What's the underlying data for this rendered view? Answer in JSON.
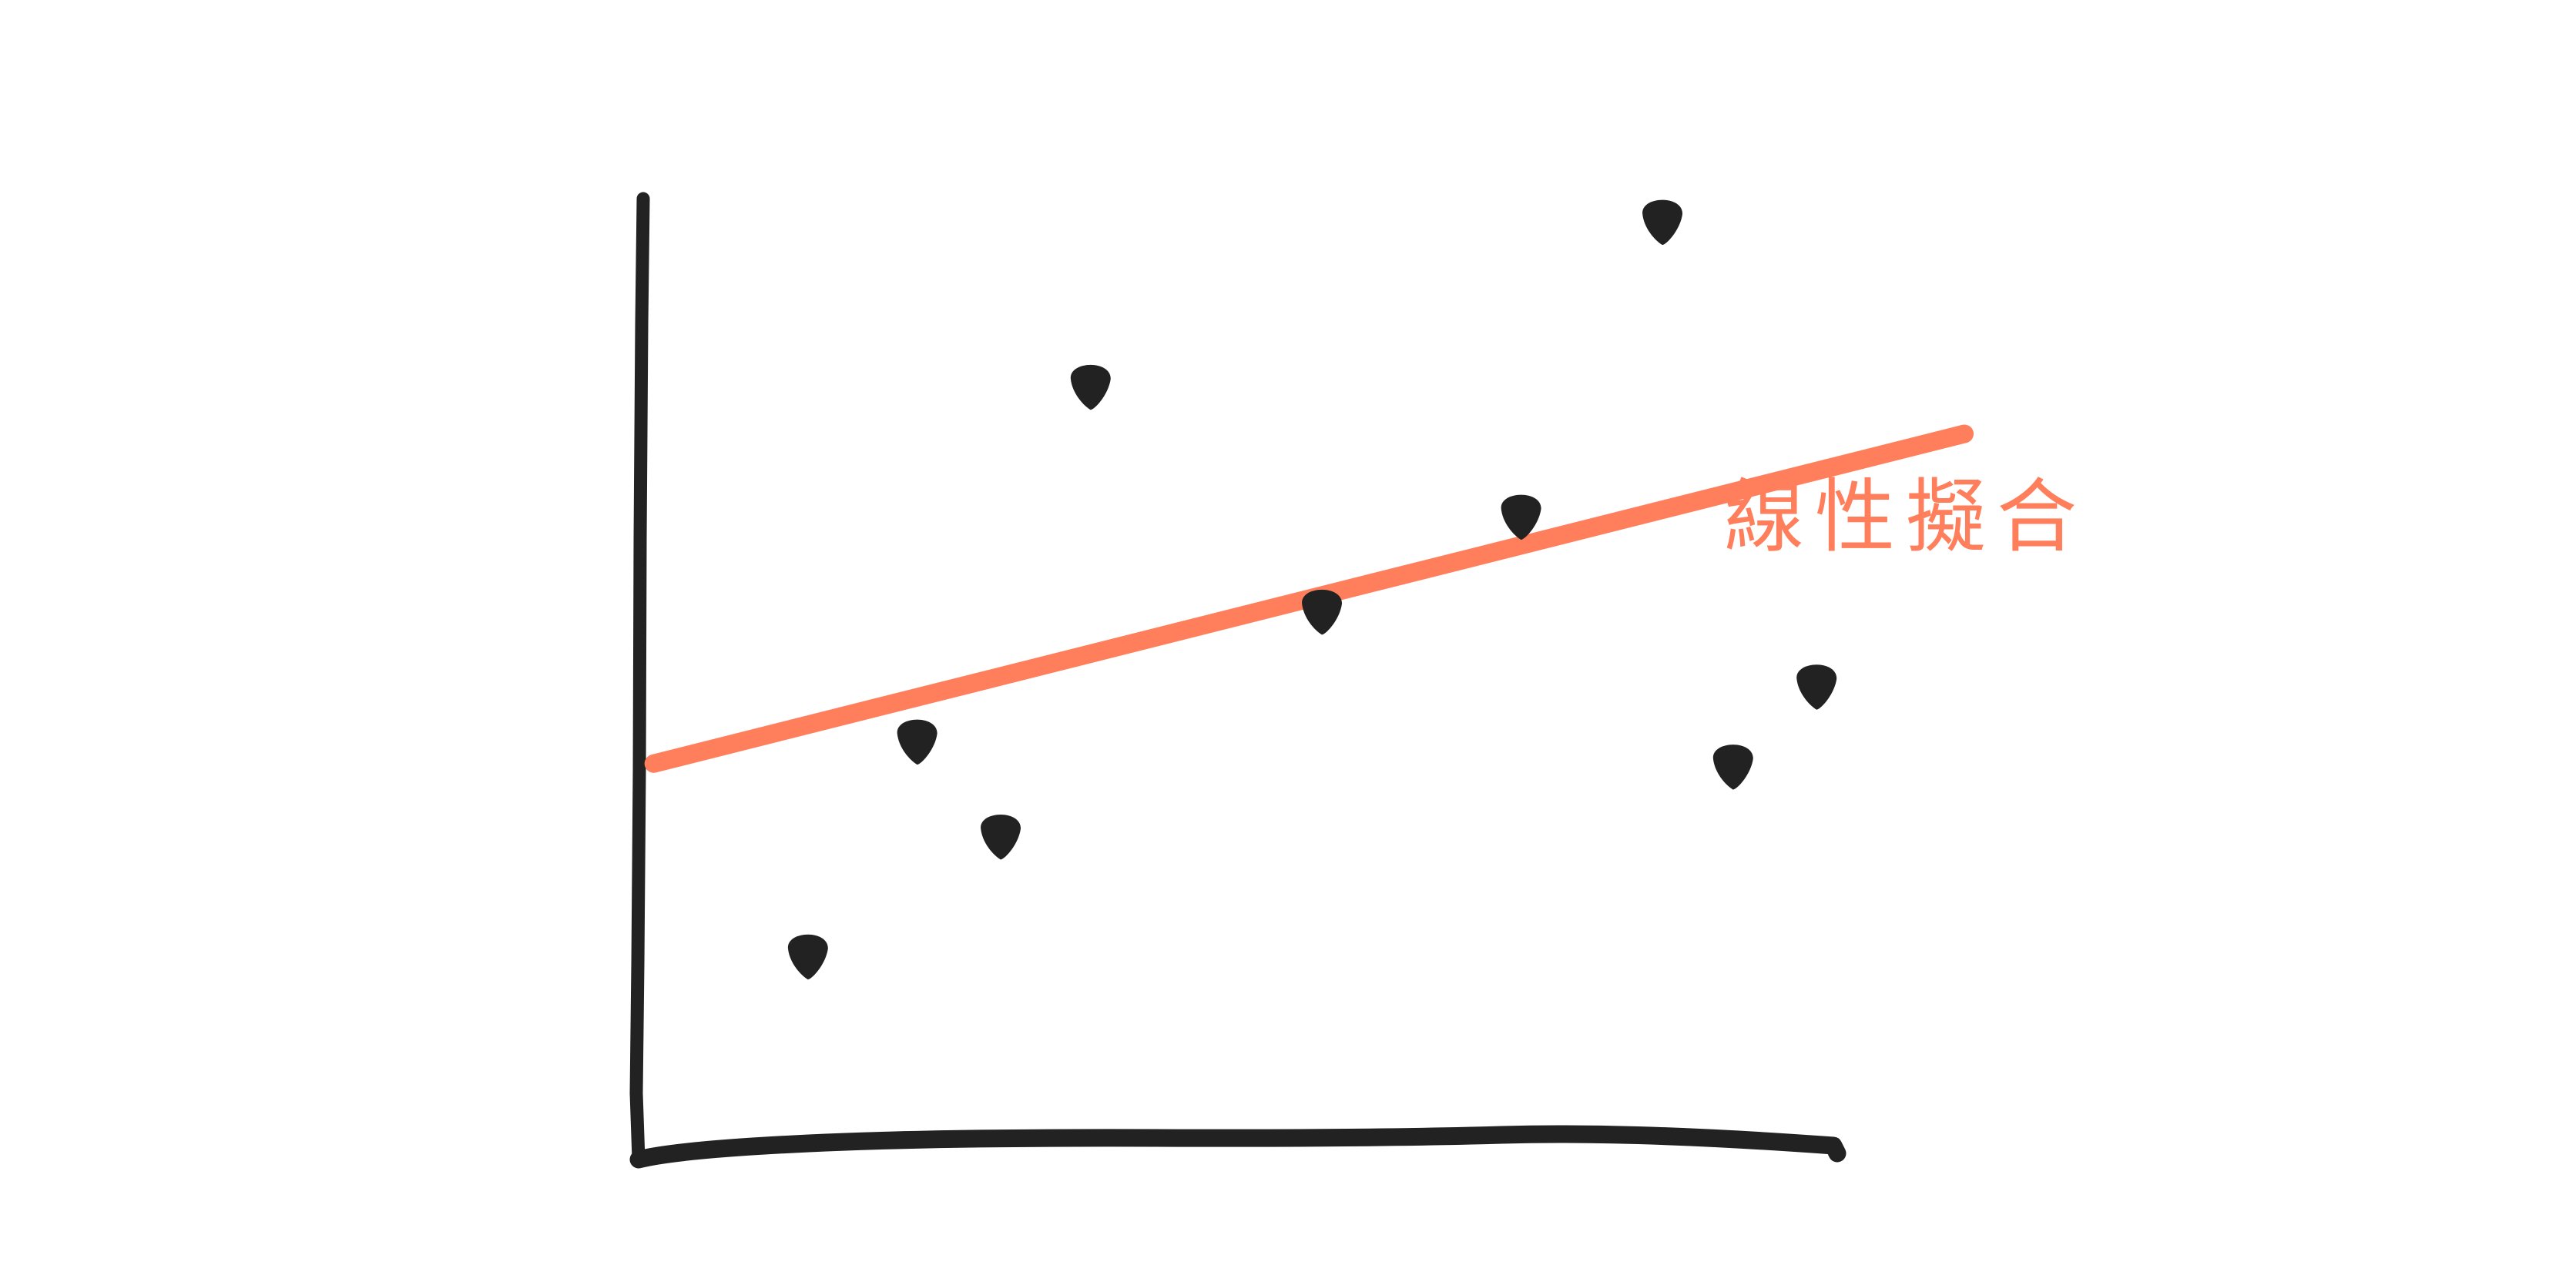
{
  "chart_data": {
    "type": "scatter",
    "title": "",
    "xlabel": "",
    "ylabel": "",
    "xlim": [
      0,
      10
    ],
    "ylim": [
      0,
      10
    ],
    "grid": false,
    "points": [
      {
        "x": 1.3,
        "y": 2.0
      },
      {
        "x": 2.15,
        "y": 4.15
      },
      {
        "x": 2.8,
        "y": 3.2
      },
      {
        "x": 3.5,
        "y": 7.7
      },
      {
        "x": 5.3,
        "y": 5.45
      },
      {
        "x": 6.85,
        "y": 6.4
      },
      {
        "x": 7.95,
        "y": 9.35
      },
      {
        "x": 8.5,
        "y": 3.9
      },
      {
        "x": 9.15,
        "y": 4.7
      }
    ],
    "fit_line": {
      "label": "線性擬合",
      "x": [
        0.1,
        10.3
      ],
      "y": [
        3.9,
        7.2
      ],
      "color": "#FF7F5C"
    },
    "axis_color": "#222222",
    "point_color": "#222222"
  }
}
